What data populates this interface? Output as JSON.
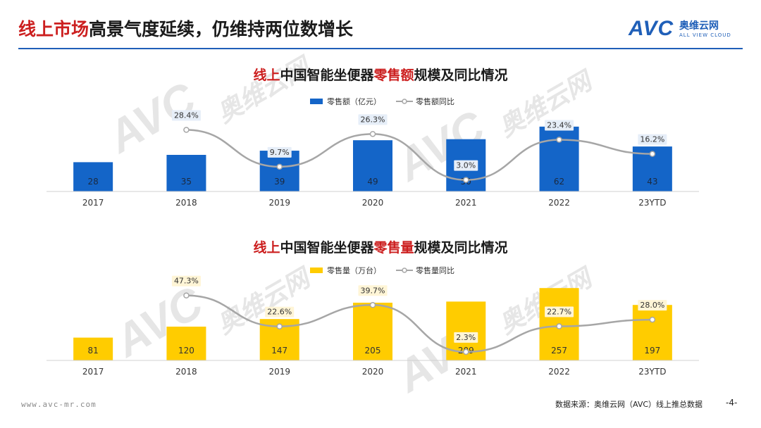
{
  "header": {
    "title_highlight": "线上市场",
    "title_rest": "高景气度延续，仍维持两位数增长"
  },
  "logo": {
    "mark": "AVC",
    "name_cn": "奥维云网",
    "name_en": "ALL VIEW CLOUD"
  },
  "watermark": {
    "mark": "AVC",
    "name_cn": "奥维云网",
    "name_en": "ALL VIEW CLOUD"
  },
  "colors": {
    "title_red": "#cc1f1f",
    "bar_blue": "#1465c8",
    "bar_yellow": "#ffcc00",
    "line_gray": "#a6a6a6",
    "accent_blue": "#1f5fb8"
  },
  "chart_data": [
    {
      "type": "bar",
      "title_parts": [
        "线上",
        "中国智能坐便器",
        "零售额",
        "规模及同比情况"
      ],
      "categories": [
        "2017",
        "2018",
        "2019",
        "2020",
        "2021",
        "2022",
        "23YTD"
      ],
      "series": [
        {
          "name": "零售额（亿元）",
          "kind": "bar",
          "values": [
            28,
            35,
            39,
            49,
            50,
            62,
            43
          ]
        },
        {
          "name": "零售额同比",
          "kind": "line",
          "values": [
            null,
            28.4,
            9.7,
            26.3,
            3.0,
            23.4,
            16.2
          ],
          "labels": [
            "",
            "28.4%",
            "9.7%",
            "26.3%",
            "3.0%",
            "23.4%",
            "16.2%"
          ]
        }
      ],
      "ylim": [
        0,
        70
      ],
      "line_ylim": [
        0,
        35
      ]
    },
    {
      "type": "bar",
      "title_parts": [
        "线上",
        "中国智能坐便器",
        "零售量",
        "规模及同比情况"
      ],
      "categories": [
        "2017",
        "2018",
        "2019",
        "2020",
        "2021",
        "2022",
        "23YTD"
      ],
      "series": [
        {
          "name": "零售量（万台）",
          "kind": "bar",
          "values": [
            81,
            120,
            147,
            205,
            209,
            257,
            197
          ],
          "labels": [
            "81",
            "120",
            "147",
            "205",
            "209",
            "257",
            "197"
          ]
        },
        {
          "name": "零售量同比",
          "kind": "line",
          "values": [
            null,
            47.3,
            22.6,
            39.7,
            2.3,
            22.7,
            28.0
          ],
          "labels": [
            "",
            "47.3%",
            "22.6%",
            "39.7%",
            "2.3%",
            "22.7%",
            "28.0%"
          ]
        }
      ],
      "ylim": [
        0,
        260
      ],
      "line_ylim": [
        0,
        55
      ]
    }
  ],
  "footer": {
    "url": "www.avc-mr.com",
    "source": "数据来源：奥维云网（AVC）线上推总数据",
    "page": "-4-"
  }
}
